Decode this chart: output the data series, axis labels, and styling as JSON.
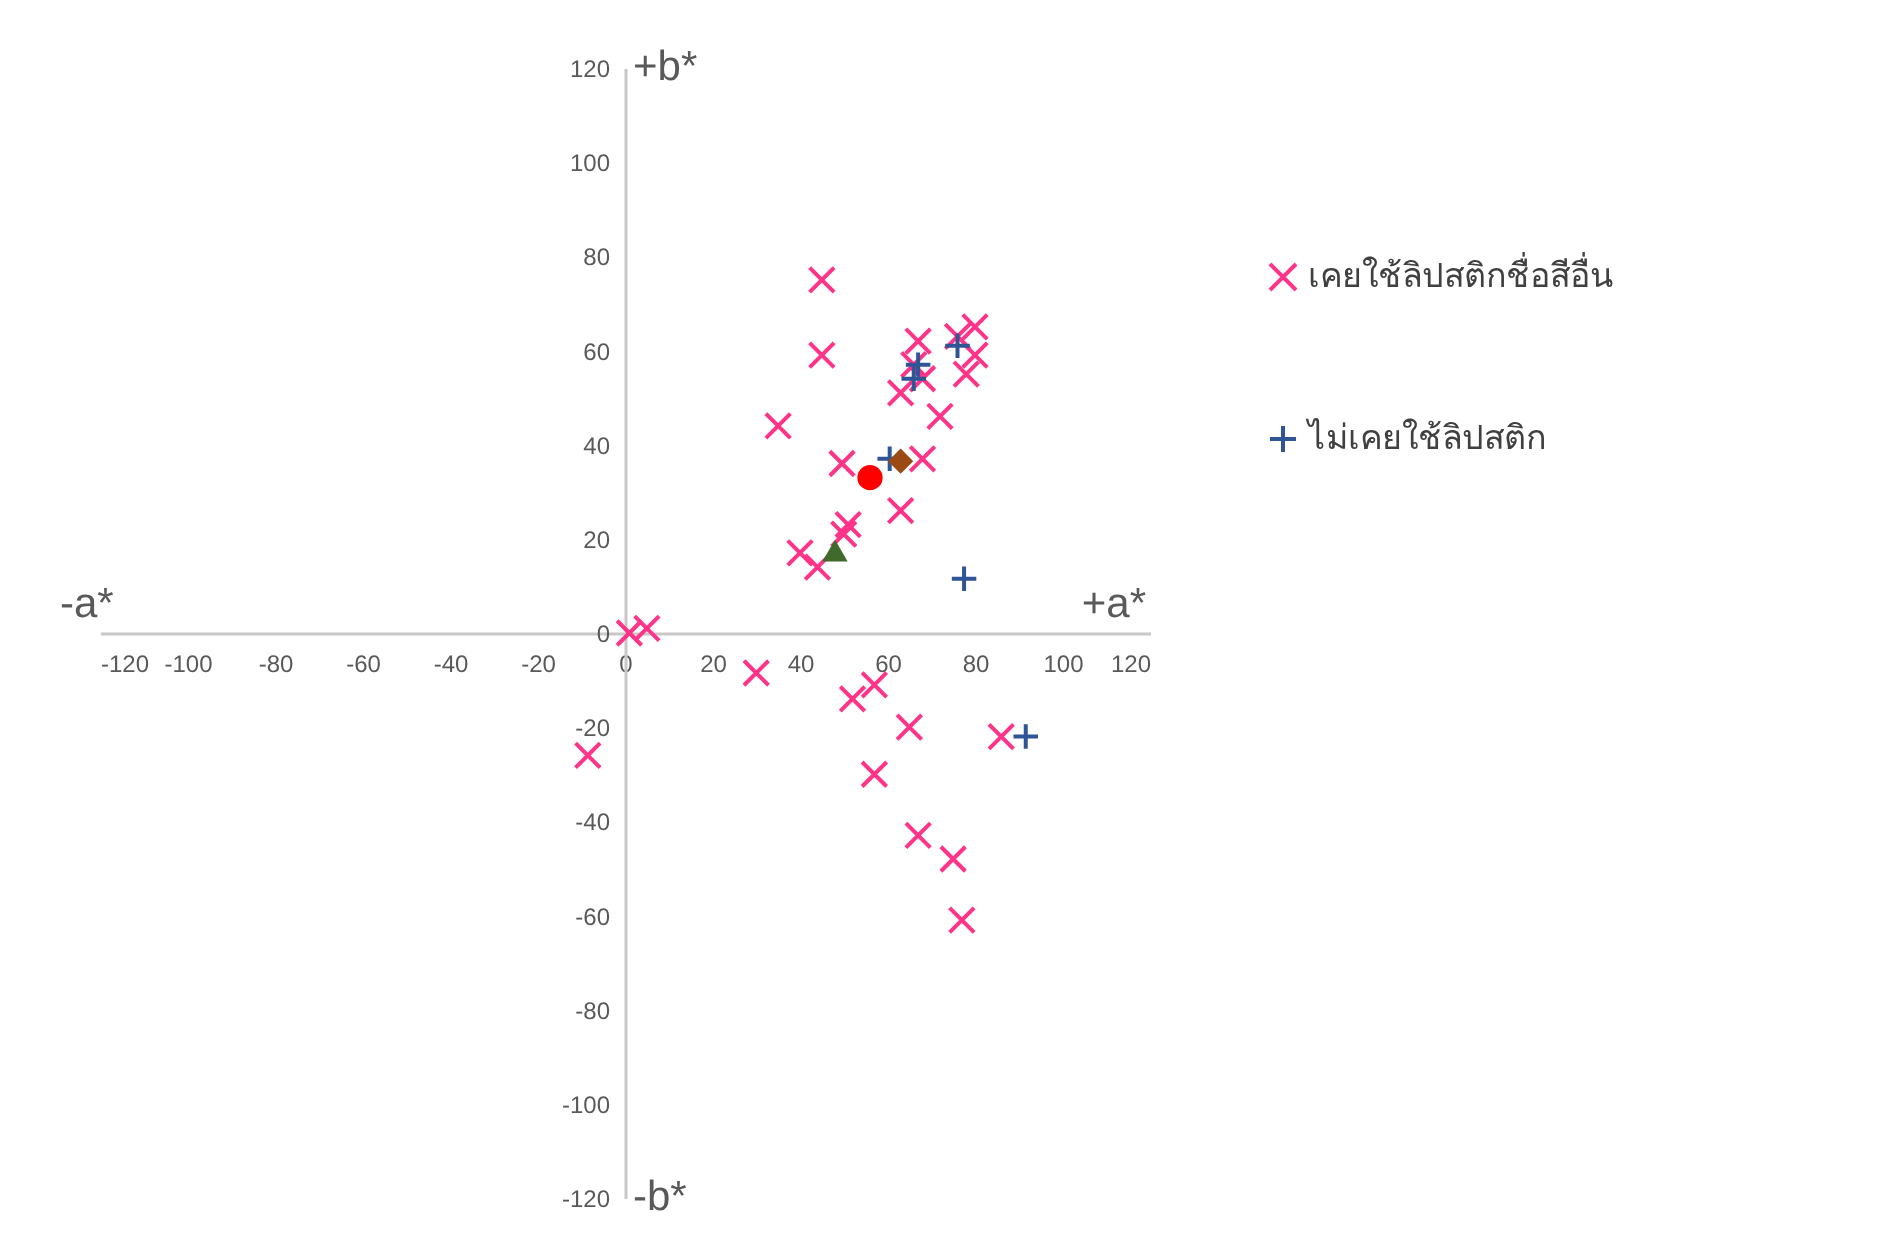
{
  "chart_data": {
    "type": "scatter",
    "xlim": [
      -120,
      120
    ],
    "xticks": [
      -120,
      -100,
      -80,
      -60,
      -40,
      -20,
      0,
      20,
      40,
      60,
      80,
      100,
      120
    ],
    "ylim": [
      -120,
      120
    ],
    "yticks": [
      -120,
      -100,
      -80,
      -60,
      -40,
      -20,
      0,
      20,
      40,
      60,
      80,
      100,
      120
    ],
    "grid": false,
    "legend": "right",
    "annotations": [
      "+b*",
      "-b*",
      "-a*",
      "+a*"
    ],
    "series": [
      {
        "name": "เคยใช้ลิปสติกชื่อสีอื่น",
        "color": "#ff3388",
        "marker": "x",
        "x": [
          45,
          45,
          35,
          49.6,
          67,
          76,
          80,
          80,
          78,
          66,
          72,
          63,
          68,
          63,
          51,
          50,
          40,
          44,
          68,
          1,
          5,
          30,
          52,
          57,
          65,
          57,
          67,
          75,
          77,
          86,
          -8.5
        ],
        "values": [
          75,
          59,
          44,
          36,
          62,
          63,
          65,
          59,
          55,
          57,
          46,
          51,
          37,
          26,
          23,
          21,
          17,
          14,
          54,
          0,
          1,
          -8.5,
          -14,
          -11,
          -20,
          -30,
          -43,
          -48,
          -61,
          -22,
          -26
        ]
      },
      {
        "name": "ไม่เคยใช้ลิปสติก",
        "color": "#2f5597",
        "marker": "cross",
        "x": [
          76,
          67,
          66,
          77.5,
          91.6,
          60.5
        ],
        "values": [
          61,
          57,
          54,
          11.5,
          -22,
          37
        ]
      },
      {
        "color": "#ff0000",
        "marker": "circle",
        "x": [
          56
        ],
        "values": [
          33
        ]
      },
      {
        "color": "#9c4a14",
        "marker": "diamond",
        "x": [
          63
        ],
        "values": [
          36.5
        ]
      },
      {
        "color": "#3f6b2a",
        "marker": "triangle",
        "x": [
          48
        ],
        "values": [
          17.5
        ]
      }
    ]
  }
}
